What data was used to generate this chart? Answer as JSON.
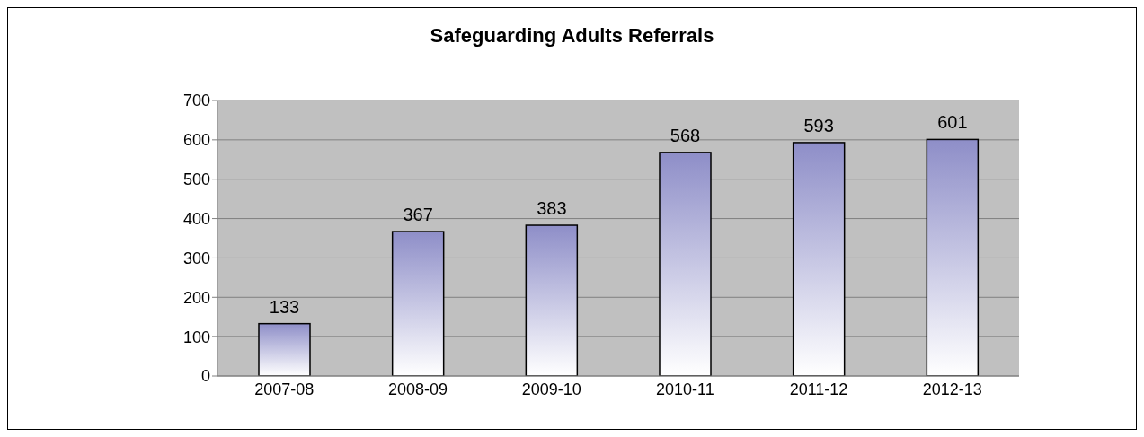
{
  "chart_data": {
    "type": "bar",
    "title": "Safeguarding Adults Referrals",
    "categories": [
      "2007-08",
      "2008-09",
      "2009-10",
      "2010-11",
      "2011-12",
      "2012-13"
    ],
    "values": [
      133,
      367,
      383,
      568,
      593,
      601
    ],
    "color": "#8e8ec8",
    "ylim": [
      0,
      700
    ],
    "yticks": [
      0,
      100,
      200,
      300,
      400,
      500,
      600,
      700
    ],
    "grid": "y",
    "data_labels": true
  }
}
